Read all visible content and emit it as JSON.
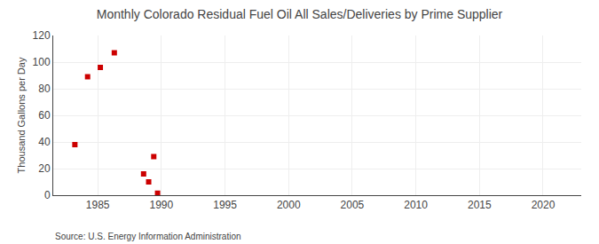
{
  "chart_data": {
    "type": "scatter",
    "title": "Monthly Colorado Residual Fuel Oil All Sales/Deliveries by Prime Supplier",
    "ylabel": "Thousand Gallons per Day",
    "annotations": [
      "Source: U.S. Energy Information Administration"
    ],
    "x": [
      1983.2,
      1984.2,
      1985.2,
      1986.3,
      1988.6,
      1989.0,
      1989.4,
      1989.7
    ],
    "values": [
      38.0,
      89.0,
      96.0,
      107.0,
      16.0,
      10.0,
      29.0,
      1.5
    ],
    "color": "#cc0000",
    "marker": "square",
    "xlim": [
      1981.5,
      2023
    ],
    "ylim": [
      0,
      120
    ],
    "xticks": [
      1985,
      1990,
      1995,
      2000,
      2005,
      2010,
      2015,
      2020
    ],
    "yticks": [
      0,
      20,
      40,
      60,
      80,
      100,
      120
    ],
    "grid": true
  }
}
